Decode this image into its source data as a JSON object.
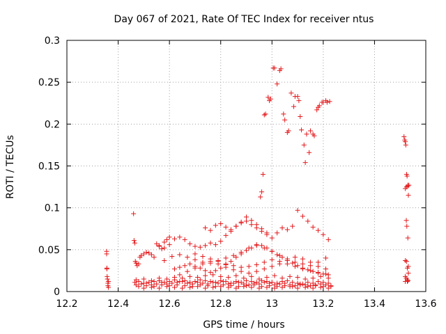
{
  "chart_data": {
    "type": "scatter",
    "title": "Day 067 of 2021, Rate Of TEC Index for receiver ntus",
    "xlabel": "GPS time / hours",
    "ylabel": "ROTI / TECUs",
    "xlim": [
      12.2,
      13.6
    ],
    "ylim": [
      0,
      0.3
    ],
    "grid": true,
    "marker": "+",
    "color": "#e41a1c",
    "x_ticks": [
      "12.2",
      "12.4",
      "12.6",
      "12.8",
      "13",
      "13.2",
      "13.4",
      "13.6"
    ],
    "y_ticks": [
      "0",
      "0.05",
      "0.1",
      "0.15",
      "0.2",
      "0.25",
      "0.3"
    ],
    "series": [
      {
        "name": "ROTI",
        "x": [
          12.355,
          12.355,
          12.356,
          12.356,
          12.357,
          12.358,
          12.36,
          12.36,
          12.362,
          12.362,
          12.46,
          12.462,
          12.465,
          12.467,
          12.47,
          12.474,
          12.48,
          12.485,
          12.49,
          12.5,
          12.51,
          12.52,
          12.53,
          12.54,
          12.55,
          12.56,
          12.57,
          12.58,
          12.59,
          12.6,
          12.465,
          12.48,
          12.5,
          12.52,
          12.54,
          12.56,
          12.58,
          12.6,
          12.62,
          12.64,
          12.66,
          12.68,
          12.7,
          12.72,
          12.74,
          12.76,
          12.78,
          12.8,
          12.82,
          12.84,
          12.86,
          12.88,
          12.9,
          12.92,
          12.94,
          12.96,
          12.98,
          13.0,
          13.02,
          13.04,
          13.06,
          13.08,
          13.1,
          13.12,
          13.14,
          13.16,
          13.18,
          13.2,
          13.22,
          12.47,
          12.49,
          12.51,
          12.53,
          12.55,
          12.57,
          12.59,
          12.61,
          12.63,
          12.65,
          12.67,
          12.69,
          12.71,
          12.73,
          12.75,
          12.77,
          12.79,
          12.81,
          12.83,
          12.85,
          12.87,
          12.89,
          12.91,
          12.93,
          12.95,
          12.97,
          12.99,
          13.01,
          13.03,
          13.05,
          13.07,
          13.09,
          13.11,
          13.13,
          13.15,
          13.17,
          13.19,
          13.21,
          13.23,
          12.47,
          12.5,
          12.53,
          12.56,
          12.59,
          12.62,
          12.65,
          12.68,
          12.71,
          12.74,
          12.77,
          12.8,
          12.83,
          12.86,
          12.89,
          12.92,
          12.95,
          12.98,
          13.01,
          13.04,
          13.07,
          13.1,
          13.13,
          13.16,
          13.19,
          13.22,
          12.48,
          12.51,
          12.54,
          12.57,
          12.6,
          12.63,
          12.66,
          12.69,
          12.72,
          12.75,
          12.78,
          12.81,
          12.84,
          12.87,
          12.9,
          12.93,
          12.96,
          12.99,
          13.02,
          13.05,
          13.08,
          13.11,
          13.14,
          13.17,
          13.2,
          13.23,
          12.5,
          12.53,
          12.56,
          12.59,
          12.62,
          12.65,
          12.68,
          12.71,
          12.74,
          12.77,
          12.8,
          12.83,
          12.86,
          12.89,
          12.92,
          12.95,
          12.98,
          13.01,
          13.04,
          13.07,
          13.1,
          13.13,
          13.16,
          13.19,
          13.22,
          12.56,
          12.58,
          12.6,
          12.62,
          12.64,
          12.66,
          12.68,
          12.7,
          12.72,
          12.74,
          12.76,
          12.78,
          12.8,
          12.82,
          12.84,
          12.86,
          12.88,
          12.9,
          12.92,
          12.94,
          12.96,
          12.98,
          12.58,
          12.61,
          12.64,
          12.67,
          12.7,
          12.73,
          12.76,
          12.79,
          12.82,
          12.85,
          12.88,
          12.91,
          12.94,
          12.97,
          13.0,
          13.03,
          13.06,
          13.09,
          13.12,
          13.15,
          13.18,
          13.21,
          12.64,
          12.67,
          12.7,
          12.73,
          12.76,
          12.79,
          12.82,
          12.85,
          12.88,
          12.91,
          12.94,
          12.97,
          13.0,
          13.03,
          13.06,
          13.09,
          13.12,
          13.15,
          13.18,
          13.21,
          12.62,
          12.64,
          12.66,
          12.68,
          12.7,
          12.72,
          12.74,
          12.76,
          12.78,
          12.8,
          12.82,
          12.84,
          12.86,
          12.88,
          12.9,
          12.92,
          12.94,
          12.96,
          12.98,
          13.0,
          13.02,
          13.04,
          13.06,
          13.08,
          13.1,
          13.12,
          13.14,
          13.16,
          13.18,
          13.2,
          13.22,
          12.7,
          12.73,
          12.76,
          12.79,
          12.82,
          12.85,
          12.88,
          12.91,
          12.94,
          12.97,
          13.0,
          13.03,
          13.06,
          13.09,
          13.12,
          13.15,
          13.18,
          13.21,
          12.74,
          12.76,
          12.78,
          12.8,
          12.82,
          12.84,
          12.86,
          12.88,
          12.9,
          12.92,
          12.94,
          12.96,
          12.98,
          13.0,
          13.02,
          13.04,
          13.06,
          13.08,
          13.1,
          13.12,
          13.14,
          13.16,
          13.18,
          13.2,
          13.22,
          12.955,
          12.96,
          12.965,
          12.97,
          12.975,
          12.985,
          12.99,
          12.995,
          13.005,
          13.01,
          13.02,
          13.03,
          13.035,
          13.045,
          13.05,
          13.06,
          13.065,
          13.075,
          13.085,
          13.09,
          13.1,
          13.105,
          13.11,
          13.115,
          13.125,
          13.13,
          13.135,
          13.145,
          13.15,
          13.16,
          13.165,
          13.175,
          13.18,
          13.185,
          13.195,
          13.2,
          13.21,
          13.215,
          13.225,
          13.515,
          13.518,
          13.52,
          13.522,
          13.525,
          13.527,
          13.53,
          13.532,
          13.534,
          13.524,
          13.526,
          13.53,
          13.52,
          13.525,
          13.528,
          13.532,
          13.52,
          13.524,
          13.528,
          13.531,
          13.52,
          13.525,
          13.53,
          13.52,
          13.528,
          13.532
        ],
        "y": [
          0.048,
          0.045,
          0.028,
          0.027,
          0.018,
          0.015,
          0.01,
          0.007,
          0.005,
          0.012,
          0.093,
          0.061,
          0.058,
          0.036,
          0.034,
          0.031,
          0.033,
          0.041,
          0.043,
          0.045,
          0.047,
          0.046,
          0.044,
          0.041,
          0.057,
          0.054,
          0.051,
          0.059,
          0.062,
          0.065,
          0.011,
          0.012,
          0.01,
          0.011,
          0.012,
          0.013,
          0.011,
          0.012,
          0.014,
          0.012,
          0.013,
          0.011,
          0.012,
          0.014,
          0.013,
          0.012,
          0.011,
          0.013,
          0.012,
          0.01,
          0.012,
          0.011,
          0.013,
          0.012,
          0.011,
          0.013,
          0.012,
          0.011,
          0.01,
          0.012,
          0.013,
          0.011,
          0.01,
          0.009,
          0.011,
          0.01,
          0.012,
          0.011,
          0.01,
          0.008,
          0.009,
          0.01,
          0.008,
          0.009,
          0.011,
          0.009,
          0.01,
          0.011,
          0.012,
          0.01,
          0.009,
          0.011,
          0.01,
          0.009,
          0.011,
          0.01,
          0.012,
          0.009,
          0.01,
          0.011,
          0.009,
          0.008,
          0.01,
          0.009,
          0.011,
          0.01,
          0.008,
          0.009,
          0.01,
          0.008,
          0.007,
          0.009,
          0.008,
          0.007,
          0.008,
          0.009,
          0.008,
          0.007,
          0.014,
          0.015,
          0.013,
          0.016,
          0.015,
          0.017,
          0.016,
          0.018,
          0.017,
          0.019,
          0.02,
          0.018,
          0.017,
          0.019,
          0.016,
          0.018,
          0.015,
          0.017,
          0.019,
          0.016,
          0.018,
          0.017,
          0.015,
          0.016,
          0.018,
          0.016,
          0.006,
          0.007,
          0.006,
          0.008,
          0.007,
          0.008,
          0.007,
          0.006,
          0.008,
          0.007,
          0.006,
          0.008,
          0.007,
          0.006,
          0.007,
          0.008,
          0.006,
          0.007,
          0.006,
          0.007,
          0.006,
          0.008,
          0.006,
          0.007,
          0.006,
          0.006,
          0.004,
          0.005,
          0.004,
          0.006,
          0.005,
          0.004,
          0.005,
          0.006,
          0.004,
          0.005,
          0.006,
          0.005,
          0.004,
          0.006,
          0.005,
          0.004,
          0.005,
          0.004,
          0.005,
          0.006,
          0.004,
          0.005,
          0.004,
          0.005,
          0.004,
          0.055,
          0.052,
          0.056,
          0.063,
          0.065,
          0.062,
          0.057,
          0.054,
          0.053,
          0.055,
          0.058,
          0.056,
          0.06,
          0.067,
          0.072,
          0.078,
          0.083,
          0.089,
          0.085,
          0.08,
          0.075,
          0.07,
          0.037,
          0.042,
          0.044,
          0.041,
          0.038,
          0.035,
          0.034,
          0.037,
          0.04,
          0.043,
          0.047,
          0.052,
          0.055,
          0.052,
          0.048,
          0.043,
          0.039,
          0.035,
          0.033,
          0.031,
          0.035,
          0.04,
          0.02,
          0.024,
          0.028,
          0.033,
          0.036,
          0.033,
          0.029,
          0.026,
          0.024,
          0.022,
          0.024,
          0.027,
          0.03,
          0.033,
          0.037,
          0.041,
          0.039,
          0.035,
          0.03,
          0.027,
          0.027,
          0.029,
          0.031,
          0.033,
          0.03,
          0.028,
          0.025,
          0.023,
          0.025,
          0.028,
          0.032,
          0.036,
          0.041,
          0.045,
          0.049,
          0.052,
          0.056,
          0.055,
          0.052,
          0.048,
          0.044,
          0.041,
          0.037,
          0.034,
          0.031,
          0.028,
          0.026,
          0.024,
          0.022,
          0.021,
          0.02,
          0.045,
          0.042,
          0.039,
          0.036,
          0.033,
          0.031,
          0.029,
          0.03,
          0.032,
          0.035,
          0.038,
          0.036,
          0.033,
          0.03,
          0.027,
          0.025,
          0.023,
          0.021,
          0.076,
          0.073,
          0.079,
          0.081,
          0.077,
          0.074,
          0.078,
          0.082,
          0.084,
          0.08,
          0.076,
          0.072,
          0.068,
          0.064,
          0.07,
          0.076,
          0.074,
          0.078,
          0.097,
          0.09,
          0.084,
          0.077,
          0.073,
          0.068,
          0.062,
          0.113,
          0.119,
          0.14,
          0.211,
          0.212,
          0.232,
          0.228,
          0.23,
          0.267,
          0.267,
          0.248,
          0.264,
          0.266,
          0.212,
          0.205,
          0.19,
          0.192,
          0.237,
          0.221,
          0.233,
          0.233,
          0.228,
          0.209,
          0.193,
          0.175,
          0.154,
          0.188,
          0.166,
          0.192,
          0.188,
          0.186,
          0.217,
          0.22,
          0.222,
          0.226,
          0.226,
          0.228,
          0.226,
          0.227,
          0.185,
          0.181,
          0.179,
          0.175,
          0.14,
          0.138,
          0.126,
          0.115,
          0.127,
          0.085,
          0.078,
          0.064,
          0.037,
          0.036,
          0.028,
          0.022,
          0.018,
          0.016,
          0.012,
          0.013,
          0.123,
          0.125,
          0.127,
          0.012,
          0.014,
          0.03
        ]
      }
    ]
  }
}
